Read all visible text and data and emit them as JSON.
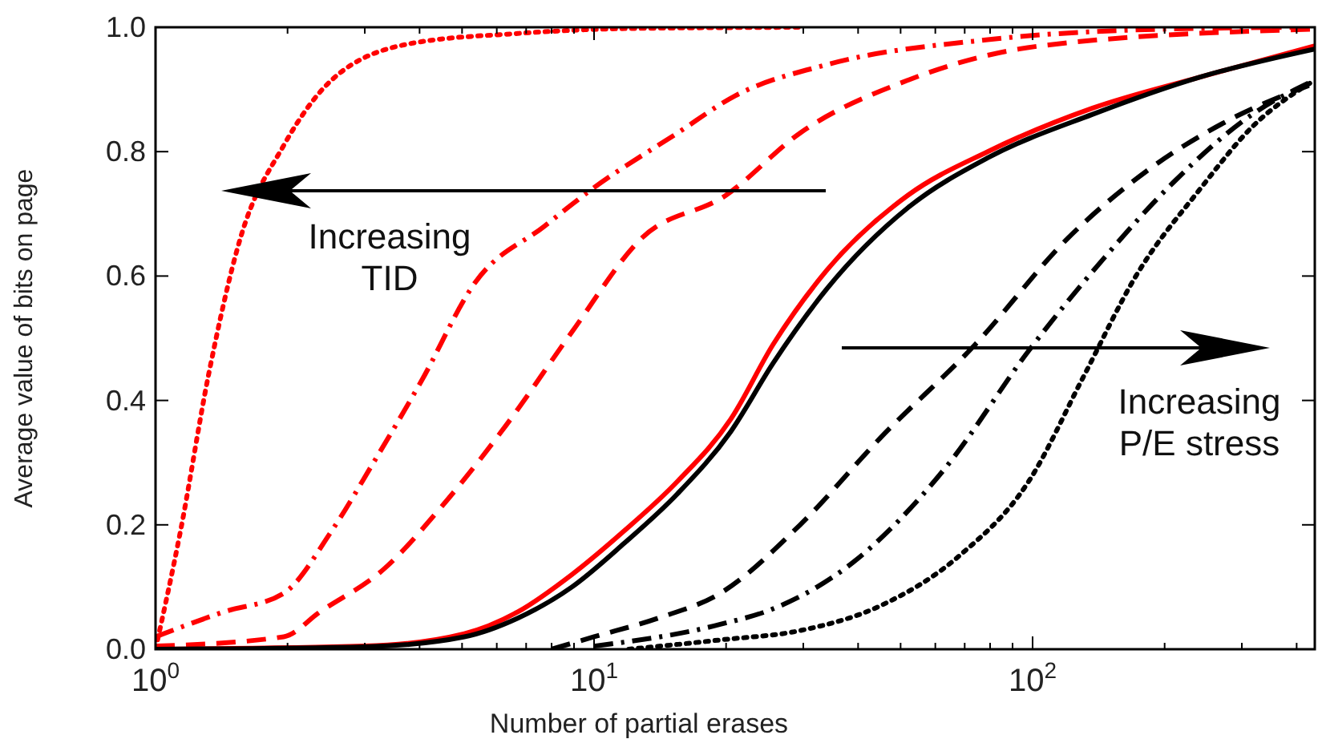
{
  "chart_data": {
    "type": "line",
    "xlabel": "Number of partial erases",
    "ylabel": "Average value of bits on page",
    "log": "x",
    "xlim": [
      1,
      440
    ],
    "ylim": [
      0,
      1
    ],
    "xticks": [
      {
        "value": 1,
        "label": "10$^{0}$"
      },
      {
        "value": 2,
        "label": null
      },
      {
        "value": 3,
        "label": null
      },
      {
        "value": 4,
        "label": null
      },
      {
        "value": 5,
        "label": null
      },
      {
        "value": 6,
        "label": null
      },
      {
        "value": 7,
        "label": null
      },
      {
        "value": 8,
        "label": null
      },
      {
        "value": 9,
        "label": null
      },
      {
        "value": 10,
        "label": "10$^{1}$"
      },
      {
        "value": 20,
        "label": null
      },
      {
        "value": 30,
        "label": null
      },
      {
        "value": 40,
        "label": null
      },
      {
        "value": 50,
        "label": null
      },
      {
        "value": 60,
        "label": null
      },
      {
        "value": 70,
        "label": null
      },
      {
        "value": 80,
        "label": null
      },
      {
        "value": 90,
        "label": null
      },
      {
        "value": 100,
        "label": "10$^{2}$"
      },
      {
        "value": 200,
        "label": null
      },
      {
        "value": 300,
        "label": null
      },
      {
        "value": 400,
        "label": null
      }
    ],
    "yticks": [
      {
        "value": 0,
        "label": "0.0"
      },
      {
        "value": 0.2,
        "label": "0.2"
      },
      {
        "value": 0.4,
        "label": "0.4"
      },
      {
        "value": 0.6,
        "label": "0.6"
      },
      {
        "value": 0.8,
        "label": "0.8"
      },
      {
        "value": 1,
        "label": "1.0"
      }
    ],
    "grid": false,
    "marker": "none",
    "annotations": [
      "Increasing\nTID",
      "Increasing\nP/E stress"
    ],
    "series": [
      {
        "color": "#ff0000",
        "line_style": "dotted",
        "x": [
          1,
          1.14,
          1.32,
          1.56,
          1.96,
          2.52,
          3.83,
          6.7,
          12,
          30
        ],
        "values": [
          0,
          0.19,
          0.44,
          0.66,
          0.81,
          0.915,
          0.974,
          0.99,
          0.998,
          1
        ]
      },
      {
        "color": "#ff0000",
        "line_style": "dashdot",
        "x": [
          1,
          1.43,
          1.96,
          2.52,
          3.14,
          4.03,
          5.36,
          7.7,
          9.9,
          15.5,
          21,
          34,
          79,
          200,
          440
        ],
        "values": [
          0.02,
          0.06,
          0.09,
          0.19,
          0.3,
          0.43,
          0.59,
          0.68,
          0.74,
          0.83,
          0.89,
          0.94,
          0.98,
          0.997,
          1
        ]
      },
      {
        "color": "#ff0000",
        "line_style": "dashed",
        "x": [
          1,
          1.96,
          2.37,
          3.33,
          4.5,
          6.3,
          8.9,
          12.8,
          20,
          29.5,
          52,
          104,
          440
        ],
        "values": [
          0.005,
          0.02,
          0.06,
          0.13,
          0.23,
          0.36,
          0.51,
          0.66,
          0.73,
          0.83,
          0.915,
          0.97,
          0.997
        ]
      },
      {
        "color": "#ff0000",
        "line_style": "solid",
        "x": [
          1,
          3,
          5.06,
          6.7,
          8.9,
          11.7,
          15.5,
          20.5,
          25.6,
          34,
          52,
          79,
          137,
          241,
          440
        ],
        "values": [
          0,
          0.005,
          0.025,
          0.06,
          0.12,
          0.19,
          0.27,
          0.37,
          0.49,
          0.61,
          0.73,
          0.8,
          0.87,
          0.92,
          0.97
        ]
      },
      {
        "color": "#000000",
        "line_style": "solid",
        "x": [
          1,
          3,
          5.06,
          6.7,
          8.9,
          11.7,
          15.5,
          20.5,
          25.6,
          34,
          52,
          79,
          137,
          241,
          440
        ],
        "values": [
          0,
          0.004,
          0.02,
          0.05,
          0.1,
          0.17,
          0.25,
          0.35,
          0.46,
          0.58,
          0.71,
          0.79,
          0.86,
          0.92,
          0.965
        ]
      },
      {
        "color": "#000000",
        "line_style": "dashed",
        "x": [
          8,
          10,
          14,
          19.4,
          29.5,
          45,
          74,
          120,
          183,
          279,
          440
        ],
        "values": [
          0,
          0.02,
          0.05,
          0.09,
          0.2,
          0.34,
          0.49,
          0.66,
          0.77,
          0.85,
          0.91
        ]
      },
      {
        "color": "#000000",
        "line_style": "dashdot",
        "x": [
          10,
          19.4,
          25.6,
          39,
          63,
          98,
          146,
          209,
          317,
          440
        ],
        "values": [
          0.005,
          0.04,
          0.065,
          0.14,
          0.29,
          0.48,
          0.63,
          0.75,
          0.86,
          0.915
        ]
      },
      {
        "color": "#000000",
        "line_style": "dotted",
        "x": [
          12,
          19.4,
          29.5,
          45,
          68,
          98,
          131,
          172,
          241,
          317,
          440
        ],
        "values": [
          0,
          0.015,
          0.03,
          0.07,
          0.15,
          0.27,
          0.44,
          0.6,
          0.74,
          0.84,
          0.915
        ]
      }
    ]
  }
}
